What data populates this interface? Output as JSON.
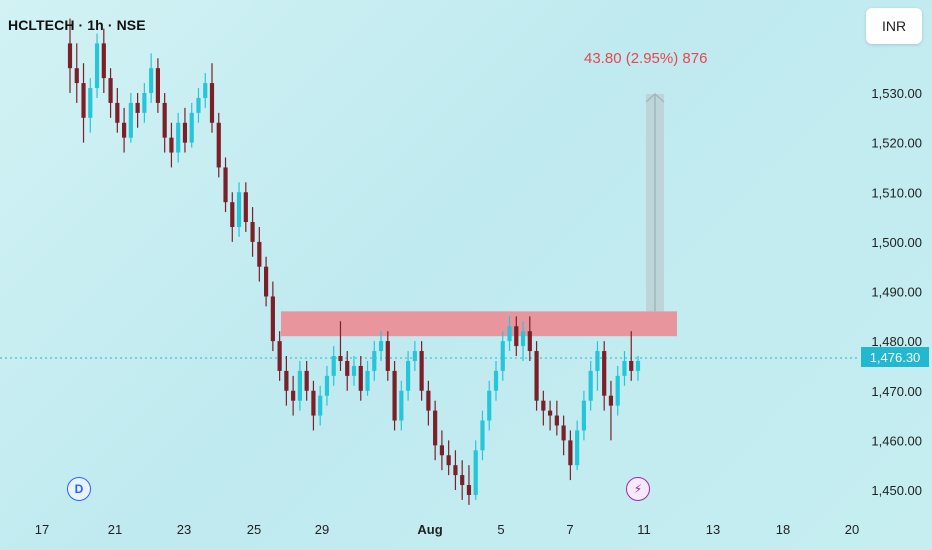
{
  "header": {
    "title": "HCLTECH · 1h · NSE",
    "currency": "INR"
  },
  "badges": {
    "d": "D",
    "bolt": "⚡",
    "bolt_name": "lightning-icon"
  },
  "last_price": "1,476.30",
  "annotation": "43.80 (2.95%) 876",
  "chart_data": {
    "type": "candlestick",
    "title": "HCLTECH · 1h · NSE",
    "currency": "INR",
    "y_ticks": [
      1530,
      1520,
      1510,
      1500,
      1490,
      1480,
      1470,
      1460,
      1450
    ],
    "y_tick_labels": [
      "1,530.00",
      "1,520.00",
      "1,510.00",
      "1,500.00",
      "1,490.00",
      "1,480.00",
      "1,470.00",
      "1,460.00",
      "1,450.00"
    ],
    "ylim": [
      1445,
      1537
    ],
    "x_tick_labels": [
      "17",
      "21",
      "23",
      "25",
      "29",
      "Aug",
      "5",
      "7",
      "11",
      "13",
      "18",
      "20"
    ],
    "last_price": 1476.3,
    "resistance_zone": [
      1481,
      1486
    ],
    "projection": {
      "from": 1486,
      "to": 1529.8,
      "change": 43.8,
      "percent": 2.95,
      "bars": 876
    },
    "up_color": "#26c6da",
    "down_color": "#7b1f28",
    "zone_color": "#f0868f",
    "candles": [
      [
        1540,
        1545,
        1530,
        1535
      ],
      [
        1535,
        1540,
        1528,
        1532
      ],
      [
        1532,
        1536,
        1520,
        1525
      ],
      [
        1525,
        1533,
        1522,
        1531
      ],
      [
        1531,
        1542,
        1529,
        1540
      ],
      [
        1540,
        1543,
        1530,
        1533
      ],
      [
        1533,
        1535,
        1525,
        1528
      ],
      [
        1528,
        1531,
        1522,
        1524
      ],
      [
        1524,
        1527,
        1518,
        1521
      ],
      [
        1521,
        1530,
        1520,
        1528
      ],
      [
        1528,
        1530,
        1523,
        1526
      ],
      [
        1526,
        1532,
        1524,
        1530
      ],
      [
        1530,
        1538,
        1528,
        1535
      ],
      [
        1535,
        1537,
        1526,
        1528
      ],
      [
        1528,
        1530,
        1518,
        1521
      ],
      [
        1521,
        1524,
        1515,
        1518
      ],
      [
        1518,
        1526,
        1516,
        1524
      ],
      [
        1524,
        1527,
        1518,
        1520
      ],
      [
        1520,
        1528,
        1519,
        1526
      ],
      [
        1526,
        1531,
        1524,
        1529
      ],
      [
        1529,
        1534,
        1527,
        1532
      ],
      [
        1532,
        1536,
        1522,
        1524
      ],
      [
        1524,
        1526,
        1513,
        1515
      ],
      [
        1515,
        1517,
        1506,
        1508
      ],
      [
        1508,
        1510,
        1500,
        1503
      ],
      [
        1503,
        1512,
        1501,
        1510
      ],
      [
        1510,
        1512,
        1502,
        1504
      ],
      [
        1504,
        1507,
        1497,
        1500
      ],
      [
        1500,
        1503,
        1492,
        1495
      ],
      [
        1495,
        1497,
        1487,
        1489
      ],
      [
        1489,
        1492,
        1478,
        1480
      ],
      [
        1480,
        1482,
        1472,
        1474
      ],
      [
        1474,
        1477,
        1467,
        1470
      ],
      [
        1470,
        1473,
        1465,
        1468
      ],
      [
        1468,
        1476,
        1466,
        1474
      ],
      [
        1474,
        1476,
        1468,
        1470
      ],
      [
        1470,
        1472,
        1462,
        1465
      ],
      [
        1465,
        1471,
        1463,
        1469
      ],
      [
        1469,
        1475,
        1467,
        1473
      ],
      [
        1473,
        1479,
        1471,
        1477
      ],
      [
        1477,
        1484,
        1474,
        1476
      ],
      [
        1476,
        1478,
        1470,
        1473
      ],
      [
        1473,
        1477,
        1471,
        1475
      ],
      [
        1475,
        1477,
        1468,
        1470
      ],
      [
        1470,
        1476,
        1469,
        1474
      ],
      [
        1474,
        1480,
        1472,
        1478
      ],
      [
        1478,
        1482,
        1476,
        1480
      ],
      [
        1480,
        1482,
        1472,
        1474
      ],
      [
        1474,
        1476,
        1462,
        1464
      ],
      [
        1464,
        1472,
        1462,
        1470
      ],
      [
        1470,
        1478,
        1468,
        1476
      ],
      [
        1476,
        1480,
        1474,
        1478
      ],
      [
        1478,
        1480,
        1468,
        1470
      ],
      [
        1470,
        1472,
        1463,
        1466
      ],
      [
        1466,
        1468,
        1456,
        1459
      ],
      [
        1459,
        1462,
        1454,
        1457
      ],
      [
        1457,
        1460,
        1453,
        1455
      ],
      [
        1455,
        1458,
        1450,
        1453
      ],
      [
        1453,
        1456,
        1448,
        1451
      ],
      [
        1451,
        1455,
        1447,
        1449
      ],
      [
        1449,
        1460,
        1448,
        1458
      ],
      [
        1458,
        1466,
        1456,
        1464
      ],
      [
        1464,
        1472,
        1462,
        1470
      ],
      [
        1470,
        1476,
        1468,
        1474
      ],
      [
        1474,
        1482,
        1472,
        1480
      ],
      [
        1480,
        1485,
        1478,
        1483
      ],
      [
        1483,
        1485,
        1477,
        1479
      ],
      [
        1479,
        1484,
        1476,
        1482
      ],
      [
        1482,
        1485,
        1476,
        1478
      ],
      [
        1478,
        1480,
        1466,
        1468
      ],
      [
        1468,
        1470,
        1463,
        1466
      ],
      [
        1466,
        1468,
        1462,
        1465
      ],
      [
        1465,
        1468,
        1461,
        1463
      ],
      [
        1463,
        1465,
        1457,
        1460
      ],
      [
        1460,
        1462,
        1452,
        1455
      ],
      [
        1455,
        1464,
        1454,
        1462
      ],
      [
        1462,
        1470,
        1460,
        1468
      ],
      [
        1468,
        1476,
        1466,
        1474
      ],
      [
        1474,
        1480,
        1470,
        1478
      ],
      [
        1478,
        1480,
        1466,
        1469
      ],
      [
        1469,
        1472,
        1460,
        1467
      ],
      [
        1467,
        1475,
        1465,
        1473
      ],
      [
        1473,
        1478,
        1471,
        1476
      ],
      [
        1476,
        1482,
        1472,
        1474
      ],
      [
        1474,
        1477,
        1472,
        1476
      ]
    ]
  }
}
